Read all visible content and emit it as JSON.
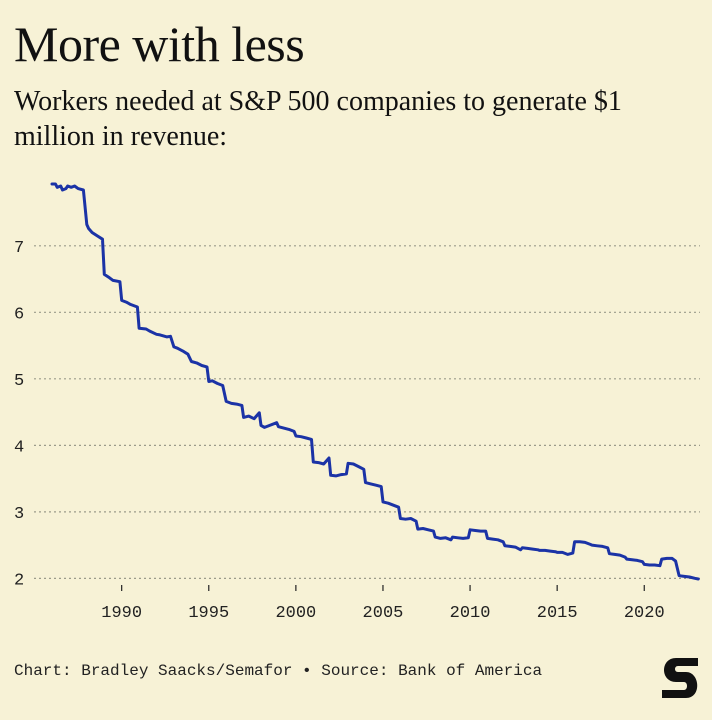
{
  "title": "More with less",
  "subtitle": "Workers needed at S&P 500 companies to generate $1 million in revenue:",
  "footer": "Chart: Bradley Saacks/Semafor • Source: Bank of America",
  "colors": {
    "background": "#f7f2d6",
    "line": "#1b33a6",
    "grid": "#9b9b8a",
    "text": "#111111"
  },
  "logo_icon": "semafor-s-logo",
  "chart_data": {
    "type": "line",
    "title": "More with less",
    "subtitle": "Workers needed at S&P 500 companies to generate $1 million in revenue:",
    "xlabel": "",
    "ylabel": "",
    "xlim": [
      1986,
      2023.2
    ],
    "ylim": [
      1.9,
      8.05
    ],
    "xticks": [
      1990,
      1995,
      2000,
      2005,
      2010,
      2015,
      2020
    ],
    "yticks": [
      2,
      3,
      4,
      5,
      6,
      7
    ],
    "grid": "horizontal dotted",
    "legend": "none",
    "series": [
      {
        "points": [
          [
            1986.0,
            7.93
          ],
          [
            1986.2,
            7.93
          ],
          [
            1986.3,
            7.88
          ],
          [
            1986.5,
            7.9
          ],
          [
            1986.6,
            7.84
          ],
          [
            1986.8,
            7.86
          ],
          [
            1986.9,
            7.9
          ],
          [
            1987.1,
            7.88
          ],
          [
            1987.3,
            7.9
          ],
          [
            1987.5,
            7.86
          ],
          [
            1987.8,
            7.84
          ],
          [
            1988.0,
            7.32
          ],
          [
            1988.1,
            7.26
          ],
          [
            1988.3,
            7.2
          ],
          [
            1988.6,
            7.15
          ],
          [
            1988.9,
            7.1
          ],
          [
            1989.0,
            6.57
          ],
          [
            1989.3,
            6.52
          ],
          [
            1989.5,
            6.48
          ],
          [
            1989.9,
            6.46
          ],
          [
            1990.0,
            6.18
          ],
          [
            1990.3,
            6.15
          ],
          [
            1990.5,
            6.12
          ],
          [
            1990.9,
            6.08
          ],
          [
            1991.0,
            5.76
          ],
          [
            1991.4,
            5.75
          ],
          [
            1991.6,
            5.72
          ],
          [
            1992.0,
            5.67
          ],
          [
            1992.2,
            5.66
          ],
          [
            1992.6,
            5.63
          ],
          [
            1992.8,
            5.64
          ],
          [
            1993.0,
            5.48
          ],
          [
            1993.2,
            5.46
          ],
          [
            1993.5,
            5.42
          ],
          [
            1993.8,
            5.37
          ],
          [
            1994.0,
            5.26
          ],
          [
            1994.3,
            5.24
          ],
          [
            1994.6,
            5.2
          ],
          [
            1994.9,
            5.18
          ],
          [
            1995.0,
            4.96
          ],
          [
            1995.2,
            4.97
          ],
          [
            1995.5,
            4.93
          ],
          [
            1995.8,
            4.9
          ],
          [
            1996.0,
            4.66
          ],
          [
            1996.3,
            4.63
          ],
          [
            1996.6,
            4.62
          ],
          [
            1996.9,
            4.6
          ],
          [
            1997.0,
            4.42
          ],
          [
            1997.3,
            4.44
          ],
          [
            1997.6,
            4.4
          ],
          [
            1997.9,
            4.49
          ],
          [
            1998.0,
            4.3
          ],
          [
            1998.2,
            4.27
          ],
          [
            1998.5,
            4.3
          ],
          [
            1998.9,
            4.34
          ],
          [
            1999.0,
            4.28
          ],
          [
            1999.3,
            4.26
          ],
          [
            1999.6,
            4.24
          ],
          [
            1999.9,
            4.21
          ],
          [
            2000.0,
            4.14
          ],
          [
            2000.3,
            4.13
          ],
          [
            2000.6,
            4.11
          ],
          [
            2000.9,
            4.09
          ],
          [
            2001.0,
            3.75
          ],
          [
            2001.3,
            3.74
          ],
          [
            2001.6,
            3.72
          ],
          [
            2001.9,
            3.81
          ],
          [
            2002.0,
            3.55
          ],
          [
            2002.3,
            3.54
          ],
          [
            2002.6,
            3.56
          ],
          [
            2002.9,
            3.57
          ],
          [
            2003.0,
            3.73
          ],
          [
            2003.3,
            3.72
          ],
          [
            2003.6,
            3.68
          ],
          [
            2003.9,
            3.64
          ],
          [
            2004.0,
            3.44
          ],
          [
            2004.3,
            3.42
          ],
          [
            2004.6,
            3.4
          ],
          [
            2004.9,
            3.38
          ],
          [
            2005.0,
            3.15
          ],
          [
            2005.3,
            3.13
          ],
          [
            2005.6,
            3.1
          ],
          [
            2005.9,
            3.07
          ],
          [
            2006.0,
            2.9
          ],
          [
            2006.3,
            2.89
          ],
          [
            2006.6,
            2.9
          ],
          [
            2006.9,
            2.86
          ],
          [
            2007.0,
            2.74
          ],
          [
            2007.3,
            2.75
          ],
          [
            2007.6,
            2.73
          ],
          [
            2007.9,
            2.71
          ],
          [
            2008.0,
            2.62
          ],
          [
            2008.3,
            2.6
          ],
          [
            2008.6,
            2.61
          ],
          [
            2008.9,
            2.58
          ],
          [
            2009.0,
            2.62
          ],
          [
            2009.3,
            2.61
          ],
          [
            2009.6,
            2.6
          ],
          [
            2009.9,
            2.61
          ],
          [
            2010.0,
            2.73
          ],
          [
            2010.3,
            2.72
          ],
          [
            2010.6,
            2.71
          ],
          [
            2010.9,
            2.71
          ],
          [
            2011.0,
            2.6
          ],
          [
            2011.3,
            2.59
          ],
          [
            2011.6,
            2.58
          ],
          [
            2011.9,
            2.55
          ],
          [
            2012.0,
            2.49
          ],
          [
            2012.3,
            2.48
          ],
          [
            2012.6,
            2.47
          ],
          [
            2012.9,
            2.43
          ],
          [
            2013.0,
            2.46
          ],
          [
            2013.3,
            2.45
          ],
          [
            2013.6,
            2.44
          ],
          [
            2013.9,
            2.43
          ],
          [
            2014.0,
            2.42
          ],
          [
            2014.3,
            2.42
          ],
          [
            2014.6,
            2.41
          ],
          [
            2014.9,
            2.4
          ],
          [
            2015.0,
            2.39
          ],
          [
            2015.3,
            2.39
          ],
          [
            2015.6,
            2.36
          ],
          [
            2015.9,
            2.38
          ],
          [
            2016.0,
            2.55
          ],
          [
            2016.3,
            2.55
          ],
          [
            2016.6,
            2.54
          ],
          [
            2016.9,
            2.51
          ],
          [
            2017.0,
            2.5
          ],
          [
            2017.3,
            2.49
          ],
          [
            2017.6,
            2.48
          ],
          [
            2017.9,
            2.46
          ],
          [
            2018.0,
            2.37
          ],
          [
            2018.3,
            2.36
          ],
          [
            2018.6,
            2.35
          ],
          [
            2018.9,
            2.32
          ],
          [
            2019.0,
            2.29
          ],
          [
            2019.3,
            2.28
          ],
          [
            2019.6,
            2.27
          ],
          [
            2019.9,
            2.25
          ],
          [
            2020.0,
            2.21
          ],
          [
            2020.3,
            2.2
          ],
          [
            2020.6,
            2.2
          ],
          [
            2020.9,
            2.19
          ],
          [
            2021.0,
            2.29
          ],
          [
            2021.3,
            2.3
          ],
          [
            2021.6,
            2.3
          ],
          [
            2021.8,
            2.26
          ],
          [
            2022.0,
            2.04
          ],
          [
            2022.3,
            2.03
          ],
          [
            2022.6,
            2.02
          ],
          [
            2022.9,
            2.0
          ],
          [
            2023.1,
            1.99
          ]
        ]
      }
    ]
  }
}
